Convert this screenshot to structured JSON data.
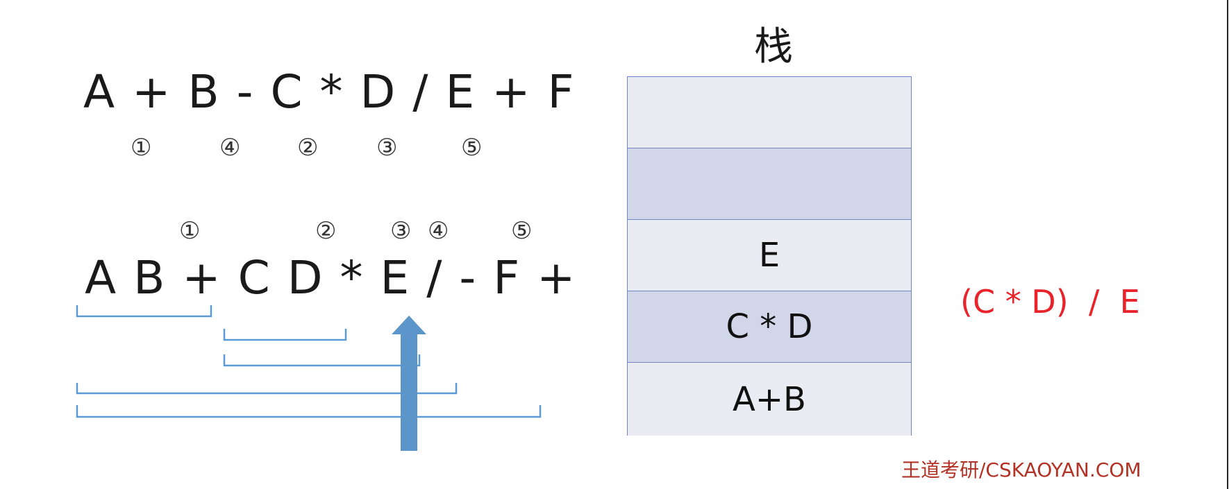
{
  "infix": {
    "expression": "A + B - C * D / E + F",
    "operator_order": [
      "①",
      "④",
      "②",
      "③",
      "⑤"
    ]
  },
  "postfix": {
    "expression": "A B + C D * E / - F +",
    "operator_order": [
      "①",
      "②",
      "③",
      "④",
      "⑤"
    ]
  },
  "stack": {
    "title": "栈",
    "cells": [
      "",
      "",
      "E",
      "C * D",
      "A+B"
    ]
  },
  "result": "(C * D)  /  E",
  "watermark": "王道考研/CSKAOYAN.COM",
  "colors": {
    "bracket": "#5b9bd5",
    "arrow": "#5b95c9",
    "stack_border": "#6f87c9",
    "result": "#e8232a",
    "watermark": "#b33226"
  }
}
